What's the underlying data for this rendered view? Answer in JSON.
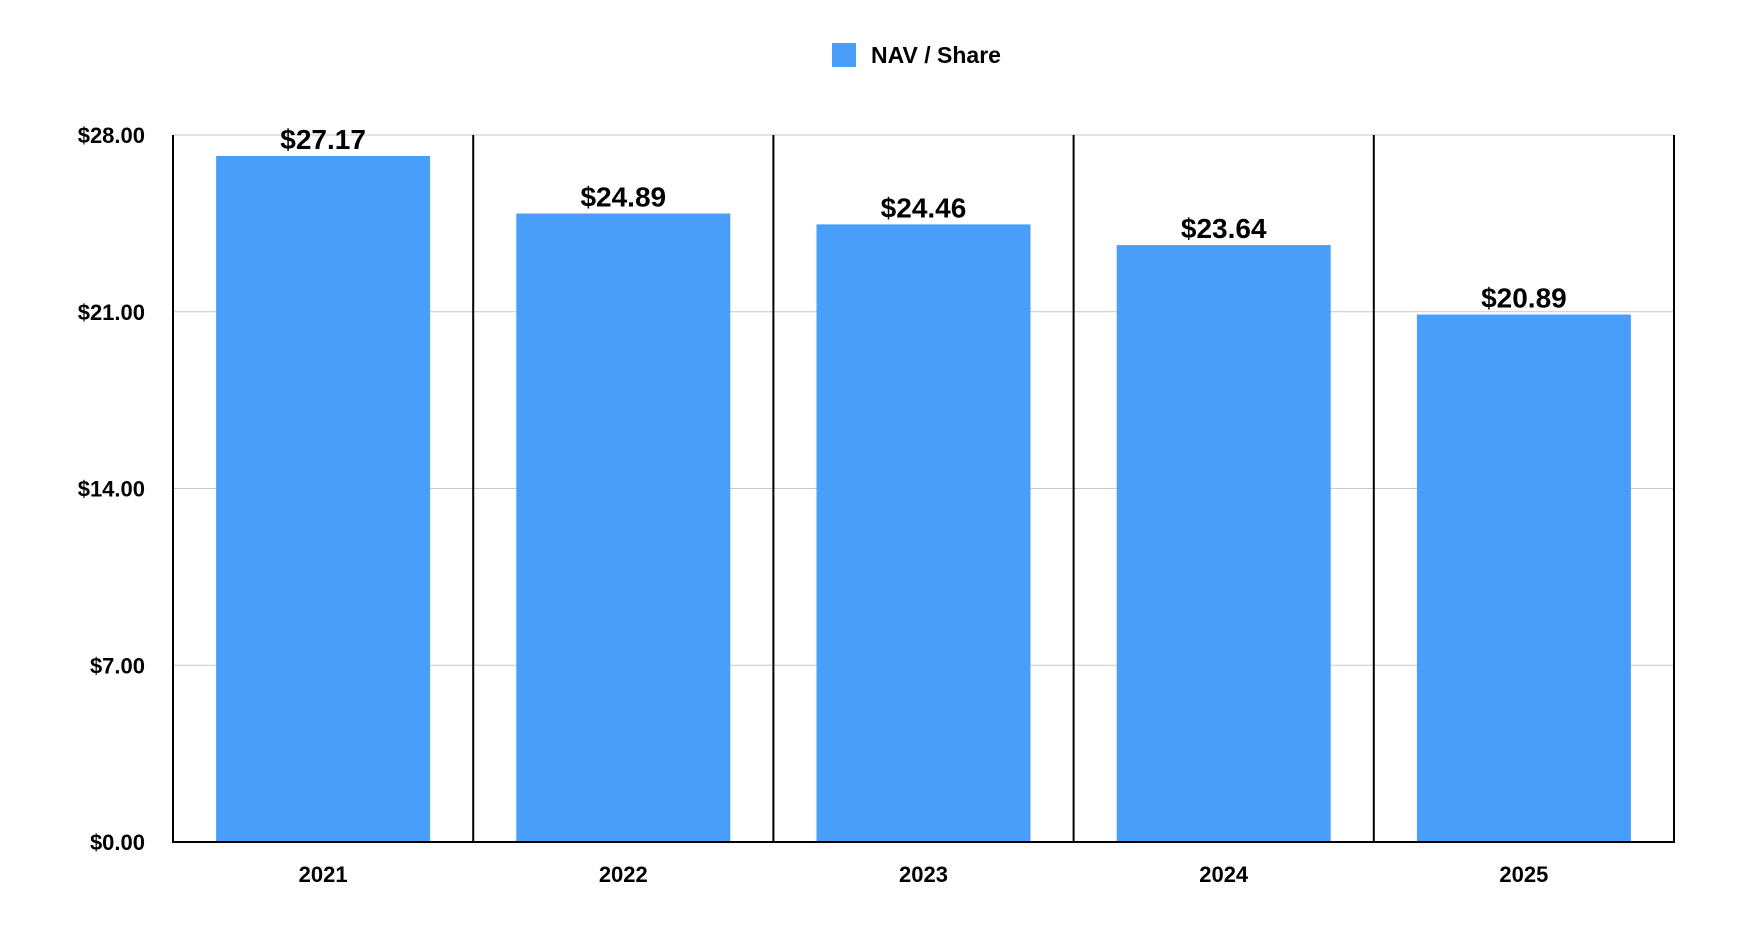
{
  "chart_data": {
    "type": "bar",
    "title": "",
    "xlabel": "",
    "ylabel": "",
    "categories": [
      "2021",
      "2022",
      "2023",
      "2024",
      "2025"
    ],
    "series": [
      {
        "name": "NAV / Share",
        "values": [
          27.17,
          24.89,
          24.46,
          23.64,
          20.89
        ],
        "data_labels": [
          "$27.17",
          "$24.89",
          "$24.46",
          "$23.64",
          "$20.89"
        ],
        "color": "#489EF8"
      }
    ],
    "ylim": [
      0,
      28
    ],
    "y_ticks": [
      0,
      7,
      14,
      21,
      28
    ],
    "y_tick_labels": [
      "$0.00",
      "$7.00",
      "$14.00",
      "$21.00",
      "$28.00"
    ],
    "grid": true,
    "category_dividers": true,
    "legend": {
      "position": "top-center",
      "label": "NAV / Share"
    }
  },
  "colors": {
    "bar": "#489EF8",
    "gridline": "#c8c8c8",
    "axis": "#000000"
  }
}
